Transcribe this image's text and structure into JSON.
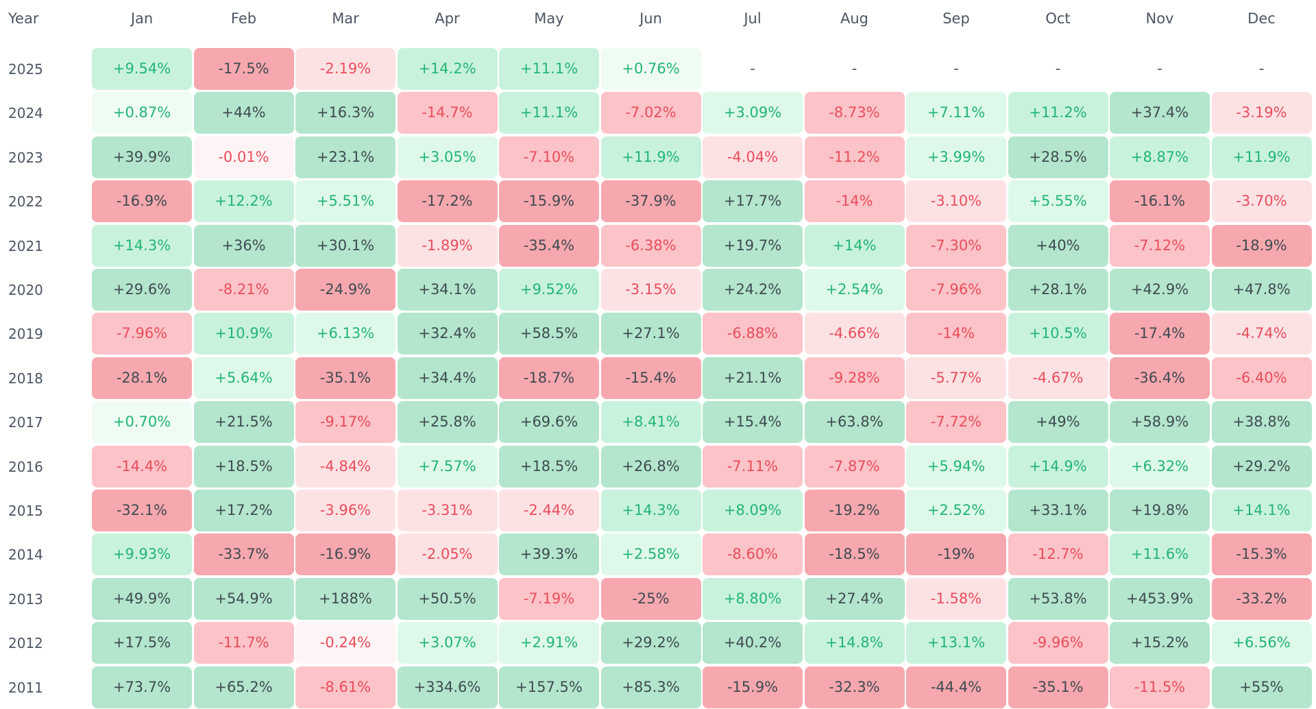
{
  "header": {
    "year": "Year"
  },
  "chart_data": {
    "type": "heatmap",
    "months": [
      "Jan",
      "Feb",
      "Mar",
      "Apr",
      "May",
      "Jun",
      "Jul",
      "Aug",
      "Sep",
      "Oct",
      "Nov",
      "Dec"
    ],
    "years": [
      "2025",
      "2024",
      "2023",
      "2022",
      "2021",
      "2020",
      "2019",
      "2018",
      "2017",
      "2016",
      "2015",
      "2014",
      "2013",
      "2012",
      "2011"
    ],
    "cells": [
      [
        "+9.54%",
        "-17.5%",
        "-2.19%",
        "+14.2%",
        "+11.1%",
        "+0.76%",
        "-",
        "-",
        "-",
        "-",
        "-",
        "-"
      ],
      [
        "+0.87%",
        "+44%",
        "+16.3%",
        "-14.7%",
        "+11.1%",
        "-7.02%",
        "+3.09%",
        "-8.73%",
        "+7.11%",
        "+11.2%",
        "+37.4%",
        "-3.19%"
      ],
      [
        "+39.9%",
        "-0.01%",
        "+23.1%",
        "+3.05%",
        "-7.10%",
        "+11.9%",
        "-4.04%",
        "-11.2%",
        "+3.99%",
        "+28.5%",
        "+8.87%",
        "+11.9%"
      ],
      [
        "-16.9%",
        "+12.2%",
        "+5.51%",
        "-17.2%",
        "-15.9%",
        "-37.9%",
        "+17.7%",
        "-14%",
        "-3.10%",
        "+5.55%",
        "-16.1%",
        "-3.70%"
      ],
      [
        "+14.3%",
        "+36%",
        "+30.1%",
        "-1.89%",
        "-35.4%",
        "-6.38%",
        "+19.7%",
        "+14%",
        "-7.30%",
        "+40%",
        "-7.12%",
        "-18.9%"
      ],
      [
        "+29.6%",
        "-8.21%",
        "-24.9%",
        "+34.1%",
        "+9.52%",
        "-3.15%",
        "+24.2%",
        "+2.54%",
        "-7.96%",
        "+28.1%",
        "+42.9%",
        "+47.8%"
      ],
      [
        "-7.96%",
        "+10.9%",
        "+6.13%",
        "+32.4%",
        "+58.5%",
        "+27.1%",
        "-6.88%",
        "-4.66%",
        "-14%",
        "+10.5%",
        "-17.4%",
        "-4.74%"
      ],
      [
        "-28.1%",
        "+5.64%",
        "-35.1%",
        "+34.4%",
        "-18.7%",
        "-15.4%",
        "+21.1%",
        "-9.28%",
        "-5.77%",
        "-4.67%",
        "-36.4%",
        "-6.40%"
      ],
      [
        "+0.70%",
        "+21.5%",
        "-9.17%",
        "+25.8%",
        "+69.6%",
        "+8.41%",
        "+15.4%",
        "+63.8%",
        "-7.72%",
        "+49%",
        "+58.9%",
        "+38.8%"
      ],
      [
        "-14.4%",
        "+18.5%",
        "-4.84%",
        "+7.57%",
        "+18.5%",
        "+26.8%",
        "-7.11%",
        "-7.87%",
        "+5.94%",
        "+14.9%",
        "+6.32%",
        "+29.2%"
      ],
      [
        "-32.1%",
        "+17.2%",
        "-3.96%",
        "-3.31%",
        "-2.44%",
        "+14.3%",
        "+8.09%",
        "-19.2%",
        "+2.52%",
        "+33.1%",
        "+19.8%",
        "+14.1%"
      ],
      [
        "+9.93%",
        "-33.7%",
        "-16.9%",
        "-2.05%",
        "+39.3%",
        "+2.58%",
        "-8.60%",
        "-18.5%",
        "-19%",
        "-12.7%",
        "+11.6%",
        "-15.3%"
      ],
      [
        "+49.9%",
        "+54.9%",
        "+188%",
        "+50.5%",
        "-7.19%",
        "-25%",
        "+8.80%",
        "+27.4%",
        "-1.58%",
        "+53.8%",
        "+453.9%",
        "-33.2%"
      ],
      [
        "+17.5%",
        "-11.7%",
        "-0.24%",
        "+3.07%",
        "+2.91%",
        "+29.2%",
        "+40.2%",
        "+14.8%",
        "+13.1%",
        "-9.96%",
        "+15.2%",
        "+6.56%"
      ],
      [
        "+73.7%",
        "+65.2%",
        "-8.61%",
        "+334.6%",
        "+157.5%",
        "+85.3%",
        "-15.9%",
        "-32.3%",
        "-44.4%",
        "-35.1%",
        "-11.5%",
        "+55%"
      ]
    ],
    "colors": {
      "pos_strong_bg": "#b3e6cc",
      "pos_mid_bg": "#c9f2dd",
      "pos_light_bg": "#def9ea",
      "pos_faint_bg": "#eefcf3",
      "neg_strong_bg": "#f7a8ae",
      "neg_mid_bg": "#fcc3c8",
      "neg_light_bg": "#fde2e4",
      "neg_faint_bg": "#fff4f5",
      "pos_text": "#22b573",
      "neg_text": "#ea4d5b",
      "strong_text": "#3f4a52"
    }
  }
}
